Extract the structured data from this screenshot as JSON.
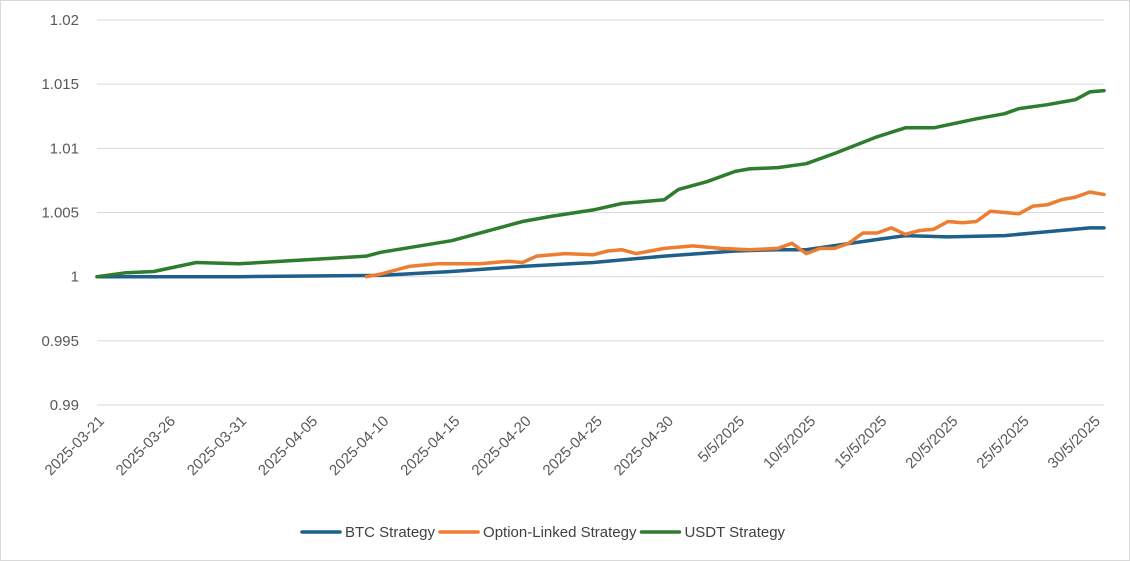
{
  "chart_data": {
    "type": "line",
    "title": "",
    "xlabel": "",
    "ylabel": "",
    "ylim": [
      0.99,
      1.02
    ],
    "y_ticks": [
      "1.02",
      "1.015",
      "1.01",
      "1.005",
      "1",
      "0.995",
      "0.99"
    ],
    "x_ticks": [
      "2025-03-21",
      "2025-03-26",
      "2025-03-31",
      "2025-04-05",
      "2025-04-10",
      "2025-04-15",
      "2025-04-20",
      "2025-04-25",
      "2025-04-30",
      "5/5/2025",
      "10/5/2025",
      "15/5/2025",
      "20/5/2025",
      "25/5/2025",
      "30/5/2025"
    ],
    "x_range": [
      "2025-03-21",
      "2025-05-31"
    ],
    "grid": "horizontal",
    "legend_position": "bottom",
    "series": [
      {
        "name": "BTC Strategy",
        "color": "#1f5f8b",
        "points": [
          [
            "2025-03-21",
            1.0
          ],
          [
            "2025-03-31",
            1.0
          ],
          [
            "2025-04-10",
            1.0001
          ],
          [
            "2025-04-15",
            1.0004
          ],
          [
            "2025-04-20",
            1.0008
          ],
          [
            "2025-04-25",
            1.0011
          ],
          [
            "2025-04-30",
            1.0016
          ],
          [
            "2025-05-05",
            1.002
          ],
          [
            "2025-05-08",
            1.0021
          ],
          [
            "2025-05-10",
            1.0021
          ],
          [
            "2025-05-15",
            1.0029
          ],
          [
            "2025-05-17",
            1.0032
          ],
          [
            "2025-05-20",
            1.0031
          ],
          [
            "2025-05-24",
            1.0032
          ],
          [
            "2025-05-26",
            1.0034
          ],
          [
            "2025-05-30",
            1.0038
          ],
          [
            "2025-05-31",
            1.0038
          ]
        ]
      },
      {
        "name": "Option-Linked Strategy",
        "color": "#ed7d31",
        "points": [
          [
            "2025-04-09",
            1.0
          ],
          [
            "2025-04-10",
            1.0002
          ],
          [
            "2025-04-12",
            1.0008
          ],
          [
            "2025-04-14",
            1.001
          ],
          [
            "2025-04-17",
            1.001
          ],
          [
            "2025-04-19",
            1.0012
          ],
          [
            "2025-04-20",
            1.0011
          ],
          [
            "2025-04-21",
            1.0016
          ],
          [
            "2025-04-23",
            1.0018
          ],
          [
            "2025-04-25",
            1.0017
          ],
          [
            "2025-04-26",
            1.002
          ],
          [
            "2025-04-27",
            1.0021
          ],
          [
            "2025-04-28",
            1.0018
          ],
          [
            "2025-04-30",
            1.0022
          ],
          [
            "2025-05-02",
            1.0024
          ],
          [
            "2025-05-04",
            1.0022
          ],
          [
            "2025-05-06",
            1.0021
          ],
          [
            "2025-05-08",
            1.0022
          ],
          [
            "2025-05-09",
            1.0026
          ],
          [
            "2025-05-10",
            1.0018
          ],
          [
            "2025-05-11",
            1.0022
          ],
          [
            "2025-05-12",
            1.0022
          ],
          [
            "2025-05-13",
            1.0026
          ],
          [
            "2025-05-14",
            1.0034
          ],
          [
            "2025-05-15",
            1.0034
          ],
          [
            "2025-05-16",
            1.0038
          ],
          [
            "2025-05-17",
            1.0033
          ],
          [
            "2025-05-18",
            1.0036
          ],
          [
            "2025-05-19",
            1.0037
          ],
          [
            "2025-05-20",
            1.0043
          ],
          [
            "2025-05-21",
            1.0042
          ],
          [
            "2025-05-22",
            1.0043
          ],
          [
            "2025-05-23",
            1.0051
          ],
          [
            "2025-05-24",
            1.005
          ],
          [
            "2025-05-25",
            1.0049
          ],
          [
            "2025-05-26",
            1.0055
          ],
          [
            "2025-05-27",
            1.0056
          ],
          [
            "2025-05-28",
            1.006
          ],
          [
            "2025-05-29",
            1.0062
          ],
          [
            "2025-05-30",
            1.0066
          ],
          [
            "2025-05-31",
            1.0064
          ]
        ]
      },
      {
        "name": "USDT Strategy",
        "color": "#2e7d2e",
        "points": [
          [
            "2025-03-21",
            1.0
          ],
          [
            "2025-03-23",
            1.0003
          ],
          [
            "2025-03-25",
            1.0004
          ],
          [
            "2025-03-28",
            1.0011
          ],
          [
            "2025-03-31",
            1.001
          ],
          [
            "2025-04-03",
            1.0012
          ],
          [
            "2025-04-06",
            1.0014
          ],
          [
            "2025-04-09",
            1.0016
          ],
          [
            "2025-04-10",
            1.0019
          ],
          [
            "2025-04-15",
            1.0028
          ],
          [
            "2025-04-20",
            1.0043
          ],
          [
            "2025-04-22",
            1.0047
          ],
          [
            "2025-04-25",
            1.0052
          ],
          [
            "2025-04-27",
            1.0057
          ],
          [
            "2025-04-30",
            1.006
          ],
          [
            "2025-05-01",
            1.0068
          ],
          [
            "2025-05-03",
            1.0074
          ],
          [
            "2025-05-05",
            1.0082
          ],
          [
            "2025-05-06",
            1.0084
          ],
          [
            "2025-05-08",
            1.0085
          ],
          [
            "2025-05-10",
            1.0088
          ],
          [
            "2025-05-12",
            1.0096
          ],
          [
            "2025-05-15",
            1.0109
          ],
          [
            "2025-05-17",
            1.0116
          ],
          [
            "2025-05-19",
            1.0116
          ],
          [
            "2025-05-22",
            1.0123
          ],
          [
            "2025-05-24",
            1.0127
          ],
          [
            "2025-05-25",
            1.0131
          ],
          [
            "2025-05-27",
            1.0134
          ],
          [
            "2025-05-29",
            1.0138
          ],
          [
            "2025-05-30",
            1.0144
          ],
          [
            "2025-05-31",
            1.0145
          ]
        ]
      }
    ]
  }
}
